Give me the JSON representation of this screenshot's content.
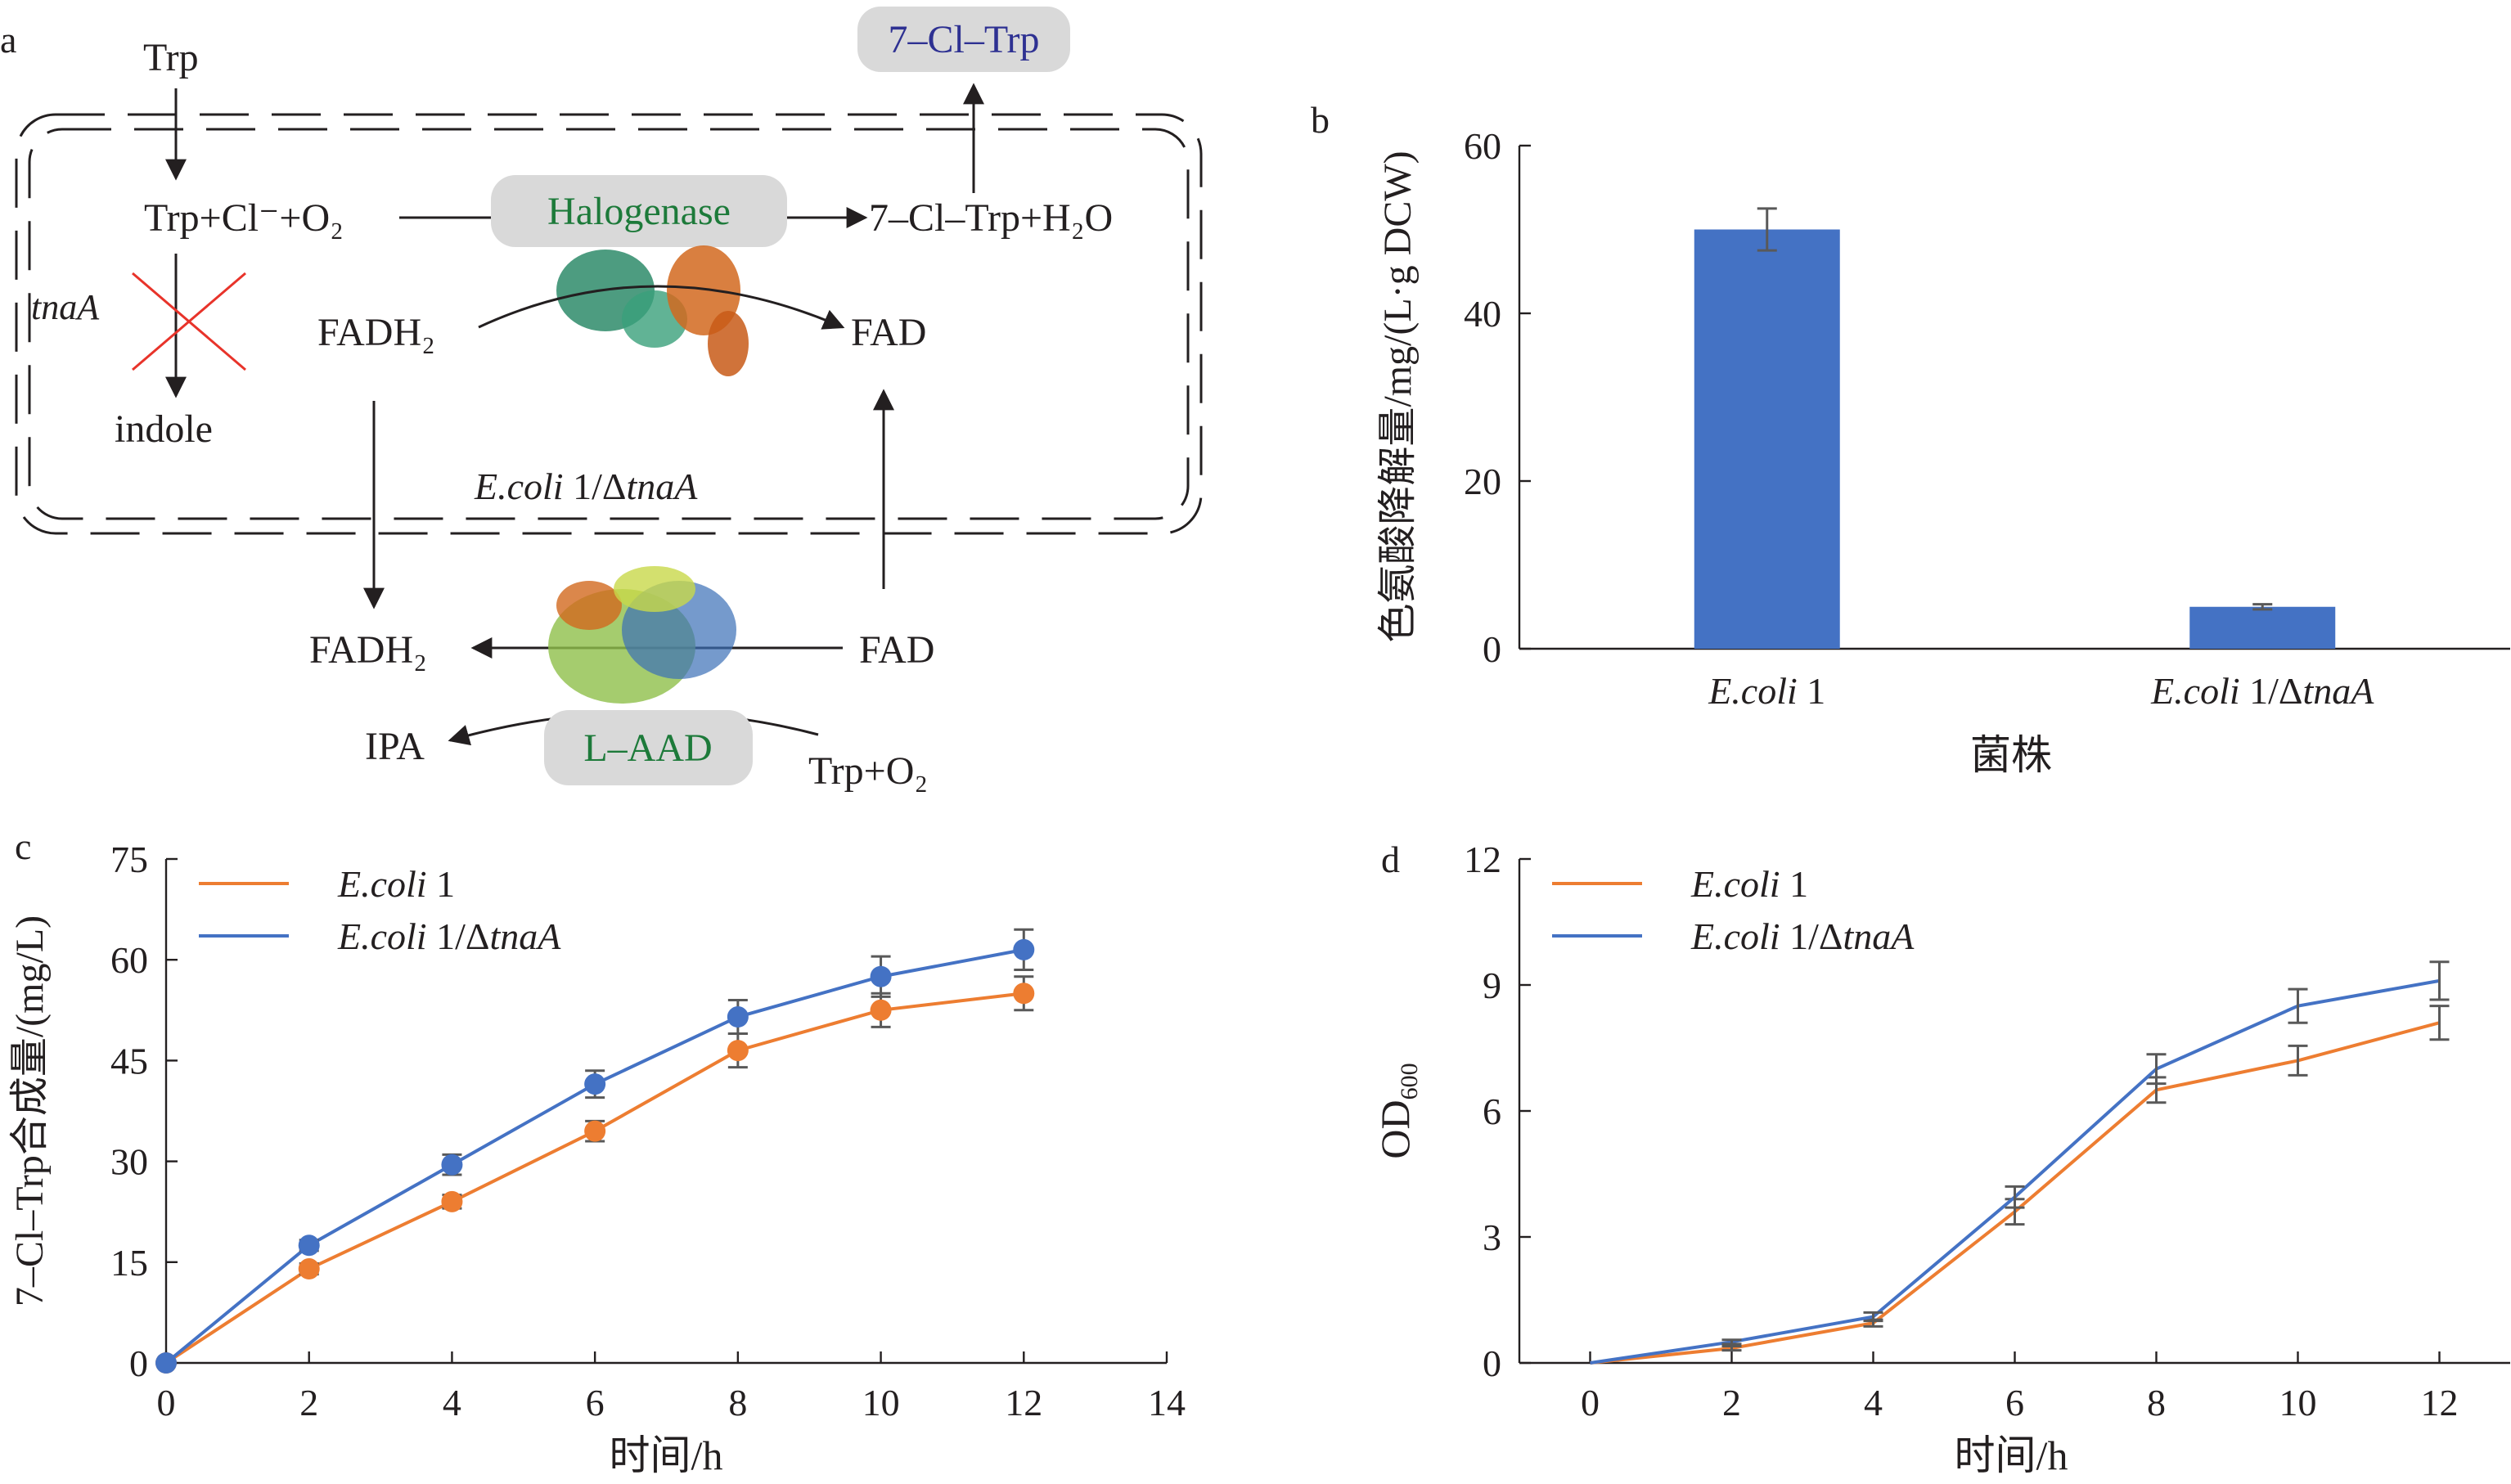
{
  "panel_labels": {
    "a": "a",
    "b": "b",
    "c": "c",
    "d": "d"
  },
  "colors": {
    "ecoli1": "#ed7d31",
    "ecoli1_dtnaA": "#4472c4",
    "bar": "#4472c4",
    "enzyme_box": "#d9d9d9",
    "product_box": "#d9d9d9",
    "cross": "#e8332a"
  },
  "pathway": {
    "trp_input": "Trp",
    "halogenation_substrates": "Trp+Cl⁻+O₂",
    "halogenase": "Halogenase",
    "halogenation_products": "7–Cl–Trp+H₂O",
    "product_exported": "7–Cl–Trp",
    "gene_knockout": "tnaA",
    "indole": "indole",
    "fadh2_inner": "FADH₂",
    "fad_inner": "FAD",
    "cell_label_strain": "E.coli",
    "cell_label_rest": " 1/Δ",
    "cell_label_gene": "tnaA",
    "fadh2_outer": "FADH₂",
    "fad_outer": "FAD",
    "ipa": "IPA",
    "laad": "L–AAD",
    "trp_o2": "Trp+O₂"
  },
  "chart_data": [
    {
      "panel": "b",
      "type": "bar",
      "categories": [
        "E.coli 1",
        "E.coli 1/ΔtnaA"
      ],
      "values": [
        50.0,
        5.0
      ],
      "errors": [
        2.5,
        0.3
      ],
      "xlabel": "菌株",
      "ylabel": "色氨酸降解量/mg/(L·g DCW)",
      "ylim": [
        0,
        60
      ],
      "yticks": [
        0,
        20,
        40,
        60
      ],
      "grid": false
    },
    {
      "panel": "c",
      "type": "line",
      "x": [
        0,
        2,
        4,
        6,
        8,
        10,
        12
      ],
      "series": [
        {
          "name": "E.coli 1",
          "values": [
            0,
            14.0,
            24.0,
            34.5,
            46.5,
            52.5,
            55.0
          ],
          "errors": [
            0,
            0.8,
            1.0,
            1.5,
            2.5,
            2.5,
            2.5
          ]
        },
        {
          "name": "E.coli 1/ΔtnaA",
          "values": [
            0,
            17.5,
            29.5,
            41.5,
            51.5,
            57.5,
            61.5
          ],
          "errors": [
            0,
            0.8,
            1.5,
            2.0,
            2.5,
            3.0,
            3.0
          ]
        }
      ],
      "xlabel": "时间/h",
      "ylabel": "7–Cl–Trp合成量/(mg/L)",
      "xlim": [
        0,
        14
      ],
      "ylim": [
        0,
        75
      ],
      "xticks": [
        0,
        2,
        4,
        6,
        8,
        10,
        12,
        14
      ],
      "yticks": [
        0,
        15,
        30,
        45,
        60,
        75
      ],
      "legend": "top-left",
      "grid": false
    },
    {
      "panel": "d",
      "type": "line",
      "x": [
        0,
        2,
        4,
        6,
        8,
        10,
        12
      ],
      "series": [
        {
          "name": "E.coli 1",
          "values": [
            0,
            0.35,
            0.95,
            3.6,
            6.5,
            7.2,
            8.1
          ],
          "errors": [
            0,
            0.05,
            0.08,
            0.3,
            0.3,
            0.35,
            0.4
          ]
        },
        {
          "name": "E.coli 1/ΔtnaA",
          "values": [
            0,
            0.5,
            1.1,
            3.95,
            7.0,
            8.5,
            9.1
          ],
          "errors": [
            0,
            0.05,
            0.1,
            0.25,
            0.35,
            0.4,
            0.45
          ]
        }
      ],
      "xlabel": "时间/h",
      "ylabel": "OD600",
      "ylabel_main": "OD",
      "ylabel_sub": "600",
      "xlim": [
        -1,
        13
      ],
      "ylim": [
        0,
        12
      ],
      "xticks": [
        0,
        2,
        4,
        6,
        8,
        10,
        12
      ],
      "yticks": [
        0,
        3,
        6,
        9,
        12
      ],
      "legend": "top-left",
      "grid": false
    }
  ]
}
